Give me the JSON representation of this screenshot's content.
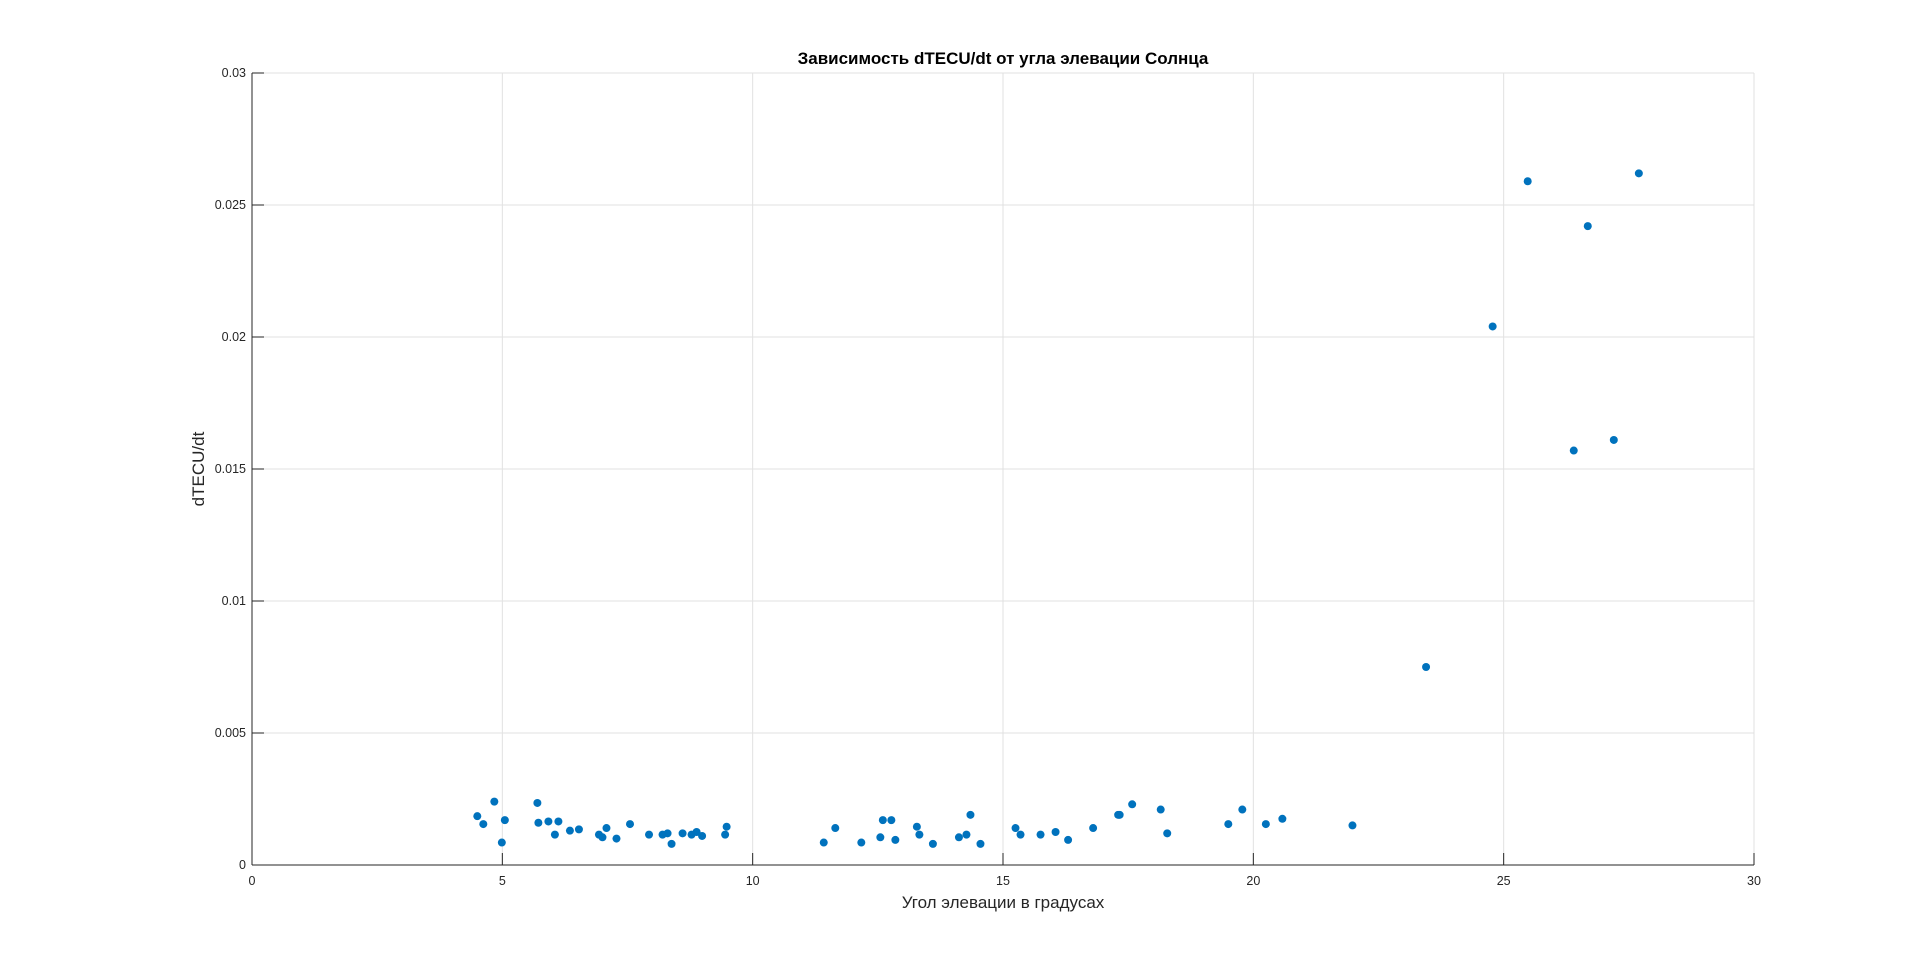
{
  "chart_data": {
    "type": "scatter",
    "title": "Зависимость dTECU/dt от угла элевации Солнца",
    "xlabel": "Угол элевации в градусах",
    "ylabel": "dTECU/dt",
    "xlim": [
      0,
      30
    ],
    "ylim": [
      0,
      0.03
    ],
    "xticks": [
      0,
      5,
      10,
      15,
      20,
      25,
      30
    ],
    "xtick_labels": [
      "0",
      "5",
      "10",
      "15",
      "20",
      "25",
      "30"
    ],
    "yticks": [
      0,
      0.005,
      0.01,
      0.015,
      0.02,
      0.025,
      0.03
    ],
    "ytick_labels": [
      "0",
      "0.005",
      "0.01",
      "0.015",
      "0.02",
      "0.025",
      "0.03"
    ],
    "grid": true,
    "marker_color": "#0072BD",
    "series": [
      {
        "x": [
          4.5,
          4.62,
          4.84,
          4.99,
          5.05,
          5.7,
          5.72,
          5.92,
          6.05,
          6.12,
          6.35,
          6.53,
          6.93,
          7.0,
          7.08,
          7.28,
          7.55,
          7.93,
          8.2,
          8.3,
          8.38,
          8.6,
          8.78,
          8.88,
          8.99,
          9.45,
          9.48,
          11.42,
          11.65,
          12.17,
          12.55,
          12.6,
          12.77,
          12.85,
          13.28,
          13.33,
          13.6,
          14.12,
          14.27,
          14.35,
          14.55,
          15.25,
          15.35,
          15.75,
          16.05,
          16.3,
          16.8,
          17.3,
          17.33,
          17.58,
          18.15,
          18.28,
          19.5,
          19.78,
          20.25,
          20.58,
          21.98,
          23.45,
          24.78,
          25.48,
          26.4,
          26.68,
          27.2,
          27.7
        ],
        "y": [
          0.00185,
          0.00155,
          0.0024,
          0.00085,
          0.0017,
          0.00235,
          0.0016,
          0.00165,
          0.00115,
          0.00165,
          0.0013,
          0.00135,
          0.00115,
          0.00105,
          0.0014,
          0.001,
          0.00155,
          0.00115,
          0.00115,
          0.0012,
          0.0008,
          0.0012,
          0.00115,
          0.00125,
          0.0011,
          0.00115,
          0.00145,
          0.00085,
          0.0014,
          0.00085,
          0.00105,
          0.0017,
          0.0017,
          0.00095,
          0.00145,
          0.00115,
          0.0008,
          0.00105,
          0.00115,
          0.0019,
          0.0008,
          0.0014,
          0.00115,
          0.00115,
          0.00125,
          0.00095,
          0.0014,
          0.0019,
          0.0019,
          0.0023,
          0.0021,
          0.0012,
          0.00155,
          0.0021,
          0.00155,
          0.00175,
          0.0015,
          0.0075,
          0.0204,
          0.0259,
          0.0157,
          0.0242,
          0.0161,
          0.0262
        ]
      }
    ]
  }
}
